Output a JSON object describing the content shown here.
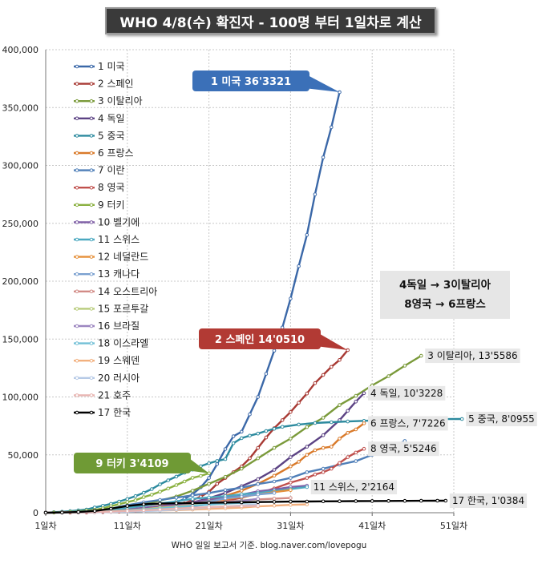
{
  "chart_data": {
    "type": "line",
    "title": "WHO 4/8(수) 확진자 - 100명 부터 1일차로 계산",
    "footer": "WHO 일일 보고서 기준. blog.naver.com/lovepogu",
    "xlabel": "",
    "ylabel": "",
    "xlim": [
      1,
      51
    ],
    "ylim": [
      0,
      400000
    ],
    "x_ticks": [
      1,
      11,
      21,
      31,
      41,
      51
    ],
    "x_tick_labels": [
      "1일차",
      "11일차",
      "21일차",
      "31일차",
      "41일차",
      "51일차"
    ],
    "y_ticks": [
      0,
      50000,
      100000,
      150000,
      200000,
      250000,
      300000,
      350000,
      400000
    ],
    "y_tick_labels": [
      "0",
      "50,000",
      "100,000",
      "150,000",
      "200,000",
      "250,000",
      "300,000",
      "350,000",
      "400,000"
    ],
    "grid": true,
    "legend_position": "top-left",
    "note_lines": [
      "4독일 → 3이탈리아",
      "8영국 → 6프랑스"
    ],
    "series": [
      {
        "name": "1 미국",
        "color": "#3b68a8",
        "x": [
          1,
          2,
          3,
          4,
          5,
          6,
          7,
          8,
          9,
          10,
          11,
          12,
          13,
          14,
          15,
          16,
          17,
          18,
          19,
          20,
          21,
          22,
          23,
          24,
          25,
          26,
          27,
          28,
          29,
          30,
          31,
          32,
          33,
          34,
          35,
          36,
          37
        ],
        "y": [
          100,
          130,
          160,
          220,
          300,
          400,
          550,
          800,
          1100,
          1500,
          1900,
          2500,
          3300,
          4300,
          5500,
          7000,
          9000,
          12000,
          16000,
          22000,
          30000,
          42000,
          55000,
          66000,
          70000,
          85000,
          100000,
          120000,
          140000,
          160000,
          185000,
          213000,
          240000,
          275000,
          307000,
          333000,
          363321
        ]
      },
      {
        "name": "2 스페인",
        "color": "#a83a34",
        "x": [
          1,
          2,
          3,
          4,
          5,
          6,
          7,
          8,
          9,
          10,
          11,
          12,
          13,
          14,
          15,
          16,
          17,
          18,
          19,
          20,
          21,
          22,
          23,
          24,
          25,
          26,
          27,
          28,
          29,
          30,
          31,
          32,
          33,
          34,
          35,
          36,
          37,
          38
        ],
        "y": [
          100,
          120,
          150,
          200,
          250,
          300,
          400,
          550,
          800,
          1000,
          1200,
          1600,
          2100,
          2800,
          3700,
          5000,
          6500,
          8000,
          11000,
          14000,
          18000,
          25000,
          30000,
          35000,
          40000,
          47000,
          56000,
          65000,
          73000,
          80000,
          87000,
          95000,
          103000,
          112000,
          119000,
          126000,
          132000,
          140510
        ]
      },
      {
        "name": "3 이탈리아",
        "color": "#7a9a3a",
        "x": [
          1,
          3,
          5,
          7,
          9,
          11,
          13,
          15,
          17,
          19,
          21,
          23,
          25,
          27,
          29,
          31,
          33,
          35,
          37,
          39,
          41,
          43,
          45,
          47
        ],
        "y": [
          100,
          300,
          800,
          1600,
          3000,
          5000,
          7500,
          10500,
          14000,
          19000,
          25000,
          31000,
          38000,
          47000,
          56000,
          64000,
          74000,
          82000,
          93000,
          101000,
          110000,
          118000,
          127000,
          135586
        ]
      },
      {
        "name": "4 독일",
        "color": "#5c4384",
        "x": [
          1,
          3,
          5,
          7,
          9,
          11,
          13,
          15,
          17,
          19,
          21,
          23,
          25,
          27,
          29,
          31,
          33,
          35,
          37,
          38,
          39,
          40
        ],
        "y": [
          100,
          170,
          300,
          600,
          1100,
          1900,
          3000,
          4500,
          6500,
          9000,
          12500,
          17000,
          23000,
          29000,
          37000,
          48000,
          57000,
          67000,
          80000,
          88000,
          96000,
          103228
        ]
      },
      {
        "name": "5 중국",
        "color": "#2c8a9e",
        "x": [
          1,
          2,
          3,
          4,
          5,
          6,
          7,
          8,
          9,
          10,
          11,
          12,
          13,
          14,
          15,
          16,
          17,
          18,
          19,
          20,
          21,
          22,
          23,
          24,
          25,
          26,
          27,
          28,
          29,
          30,
          32,
          34,
          36,
          38,
          40,
          42,
          44,
          46,
          48,
          50,
          52
        ],
        "y": [
          100,
          500,
          800,
          1300,
          2000,
          2800,
          4600,
          6000,
          7700,
          9700,
          11800,
          14400,
          17200,
          20400,
          24500,
          28000,
          31200,
          34500,
          37200,
          40200,
          42700,
          44700,
          46300,
          60000,
          64400,
          66600,
          68400,
          70600,
          72500,
          74200,
          76200,
          77500,
          78200,
          78800,
          79400,
          79900,
          80300,
          80600,
          80800,
          80900,
          80955
        ]
      },
      {
        "name": "6 프랑스",
        "color": "#d97a2a",
        "x": [
          1,
          3,
          5,
          7,
          9,
          11,
          13,
          15,
          17,
          19,
          21,
          23,
          25,
          27,
          29,
          31,
          32,
          33,
          34,
          35,
          36,
          37,
          38,
          39,
          40
        ],
        "y": [
          100,
          200,
          500,
          1000,
          1600,
          2500,
          4000,
          6000,
          7700,
          9100,
          11000,
          14500,
          19000,
          25000,
          32000,
          40000,
          44000,
          50000,
          54000,
          56000,
          57000,
          64000,
          69000,
          72000,
          77226
        ]
      },
      {
        "name": "7 이란",
        "color": "#4f7fb8",
        "x": [
          1,
          3,
          5,
          7,
          9,
          11,
          13,
          15,
          17,
          19,
          21,
          23,
          25,
          27,
          29,
          31,
          33,
          35,
          37,
          39,
          41,
          43,
          45
        ],
        "y": [
          100,
          250,
          600,
          1500,
          3500,
          6500,
          9000,
          11000,
          13000,
          15000,
          17000,
          19600,
          21600,
          24800,
          27000,
          30000,
          35000,
          38000,
          41500,
          44600,
          50000,
          55000,
          62000
        ]
      },
      {
        "name": "8 영국",
        "color": "#c0504d",
        "x": [
          1,
          3,
          5,
          7,
          9,
          11,
          13,
          15,
          17,
          19,
          21,
          23,
          25,
          27,
          29,
          31,
          33,
          34,
          35,
          36,
          37,
          38,
          39,
          40
        ],
        "y": [
          100,
          160,
          300,
          450,
          700,
          1100,
          2000,
          3000,
          4500,
          6000,
          8000,
          10000,
          13000,
          16500,
          21000,
          26000,
          30000,
          33000,
          35000,
          38000,
          43000,
          48000,
          52000,
          55246
        ]
      },
      {
        "name": "9 터키",
        "color": "#8ab040",
        "x": [
          1,
          2,
          3,
          4,
          5,
          6,
          7,
          8,
          9,
          10,
          11,
          12,
          13,
          14,
          15,
          16,
          17,
          18,
          19,
          20,
          21
        ],
        "y": [
          100,
          200,
          400,
          700,
          1200,
          1800,
          2500,
          3800,
          5700,
          7400,
          9200,
          10800,
          13500,
          15600,
          18100,
          20900,
          23900,
          27000,
          30200,
          31800,
          34109
        ]
      },
      {
        "name": "10 벨기에",
        "color": "#7f5fa6",
        "x": [
          1,
          3,
          5,
          7,
          9,
          11,
          13,
          15,
          17,
          19,
          21,
          23,
          25,
          27,
          29,
          31,
          33
        ],
        "y": [
          100,
          300,
          700,
          1200,
          2000,
          3000,
          4300,
          5600,
          7300,
          9100,
          11000,
          13000,
          15500,
          18500,
          20000,
          22200,
          23400
        ]
      },
      {
        "name": "11 스위스",
        "color": "#4aa8c0",
        "x": [
          1,
          3,
          5,
          7,
          9,
          11,
          13,
          15,
          17,
          19,
          21,
          23,
          25,
          27,
          29,
          31,
          33
        ],
        "y": [
          100,
          300,
          800,
          1500,
          2700,
          4200,
          6100,
          8000,
          9800,
          12000,
          13200,
          14300,
          15900,
          17000,
          18800,
          20500,
          22164
        ]
      },
      {
        "name": "12 네덜란드",
        "color": "#e6903a",
        "x": [
          1,
          3,
          5,
          7,
          9,
          11,
          13,
          15,
          17,
          19,
          21,
          23,
          25,
          27,
          29,
          31
        ],
        "y": [
          100,
          250,
          500,
          800,
          1400,
          2100,
          3000,
          4200,
          5500,
          7400,
          9800,
          11700,
          13600,
          15800,
          17800,
          19600
        ]
      },
      {
        "name": "13 캐나다",
        "color": "#7aa0d0",
        "x": [
          1,
          3,
          5,
          7,
          9,
          11,
          13,
          15,
          17,
          19,
          21,
          23,
          25,
          27,
          29
        ],
        "y": [
          100,
          150,
          250,
          450,
          800,
          1400,
          2100,
          3400,
          5600,
          7400,
          9500,
          12400,
          14000,
          15800,
          17000
        ]
      },
      {
        "name": "14 오스트리아",
        "color": "#d28b86",
        "x": [
          1,
          3,
          5,
          7,
          9,
          11,
          13,
          15,
          17,
          19,
          21,
          23,
          25,
          27,
          29,
          31
        ],
        "y": [
          100,
          200,
          400,
          800,
          1300,
          2000,
          3000,
          4400,
          5500,
          7000,
          8500,
          9600,
          10500,
          11500,
          12200,
          12700
        ]
      },
      {
        "name": "15 포르투갈",
        "color": "#b8cc7c",
        "x": [
          1,
          3,
          5,
          7,
          9,
          11,
          13,
          15,
          17,
          19,
          21,
          23,
          25,
          27
        ],
        "y": [
          100,
          200,
          400,
          800,
          1300,
          2000,
          3000,
          4300,
          5200,
          6400,
          7400,
          8500,
          10500,
          11700
        ]
      },
      {
        "name": "16 브라질",
        "color": "#9c86c0",
        "x": [
          1,
          3,
          5,
          7,
          9,
          11,
          13,
          15,
          17,
          19,
          21,
          23,
          25,
          27
        ],
        "y": [
          100,
          200,
          400,
          700,
          1200,
          1700,
          2400,
          3400,
          4300,
          5700,
          7100,
          8800,
          10200,
          12000
        ]
      },
      {
        "name": "18 이스라엘",
        "color": "#72c0d6",
        "x": [
          1,
          3,
          5,
          7,
          9,
          11,
          13,
          15,
          17,
          19,
          21,
          23,
          25,
          27
        ],
        "y": [
          100,
          200,
          400,
          700,
          1100,
          1800,
          2700,
          3600,
          4800,
          6100,
          7000,
          7800,
          8500,
          9200
        ]
      },
      {
        "name": "19 스웨덴",
        "color": "#f2b07e",
        "x": [
          1,
          3,
          5,
          7,
          9,
          11,
          13,
          15,
          17,
          19,
          21,
          23,
          25,
          27,
          29,
          31,
          33
        ],
        "y": [
          100,
          200,
          400,
          700,
          1000,
          1300,
          1600,
          1900,
          2200,
          2700,
          3300,
          3900,
          4500,
          5500,
          6100,
          6800,
          7200
        ]
      },
      {
        "name": "20 러시아",
        "color": "#b6cae6",
        "x": [
          1,
          3,
          5,
          7,
          9,
          11,
          13,
          15,
          17,
          19,
          21,
          23,
          25,
          27
        ],
        "y": [
          100,
          150,
          250,
          400,
          600,
          900,
          1300,
          1900,
          2700,
          3500,
          4700,
          5400,
          6300,
          7500
        ]
      },
      {
        "name": "21 호주",
        "color": "#e8b4b0",
        "x": [
          1,
          3,
          5,
          7,
          9,
          11,
          13,
          15,
          17,
          19,
          21,
          23,
          25,
          27
        ],
        "y": [
          100,
          200,
          350,
          600,
          1000,
          1500,
          2100,
          2800,
          3600,
          4200,
          4800,
          5300,
          5600,
          5900
        ]
      },
      {
        "name": "17 한국",
        "color": "#000000",
        "x": [
          1,
          3,
          5,
          7,
          9,
          11,
          13,
          15,
          17,
          19,
          21,
          23,
          25,
          27,
          29,
          31,
          33,
          35,
          37,
          39,
          41,
          43,
          45,
          47,
          49,
          50
        ],
        "y": [
          100,
          200,
          600,
          1500,
          3500,
          5800,
          7300,
          7900,
          8200,
          8400,
          8600,
          8800,
          9000,
          9200,
          9400,
          9600,
          9700,
          9800,
          9900,
          10000,
          10100,
          10200,
          10250,
          10300,
          10350,
          10384
        ]
      }
    ],
    "end_labels": [
      {
        "series": "3 이탈리아",
        "text": "3 이탈리아, 13'5586"
      },
      {
        "series": "4 독일",
        "text": "4 독일, 10'3228"
      },
      {
        "series": "5 중국",
        "text": "5 중국, 8'0955"
      },
      {
        "series": "6 프랑스",
        "text": "6 프랑스, 7'7226"
      },
      {
        "series": "8 영국",
        "text": "8 영국, 5'5246"
      },
      {
        "series": "11 스위스",
        "text": "11 스위스, 2'2164"
      },
      {
        "series": "17 한국",
        "text": "17 한국, 1'0384"
      }
    ],
    "callouts": [
      {
        "series": "1 미국",
        "text": "1 미국 36'3321",
        "color": "#3b70b8"
      },
      {
        "series": "2 스페인",
        "text": "2 스페인 14'0510",
        "color": "#b23a34"
      },
      {
        "series": "9 터키",
        "text": "9 터키 3'4109",
        "color": "#6f9a35"
      }
    ]
  }
}
